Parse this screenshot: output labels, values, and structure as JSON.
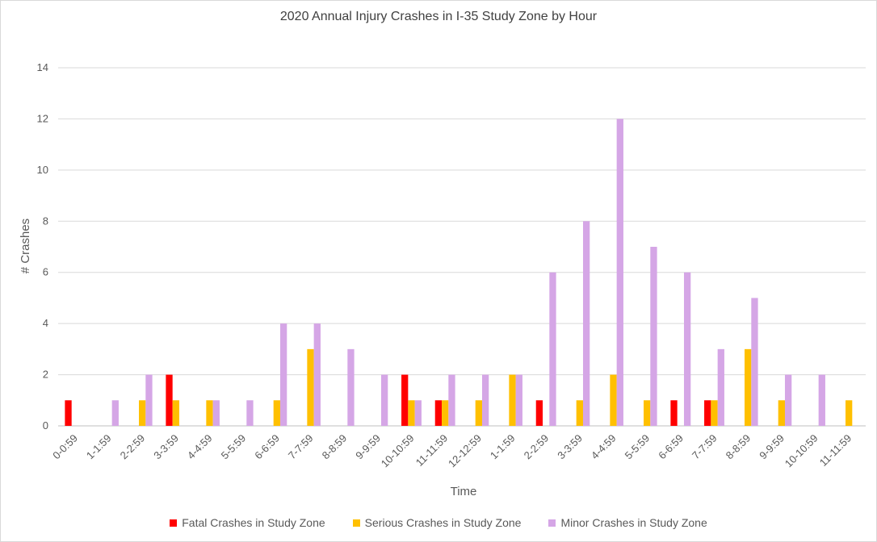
{
  "chart_data": {
    "type": "bar",
    "title": "2020 Annual Injury Crashes in I-35 Study Zone by Hour",
    "xlabel": "Time",
    "ylabel": "# Crashes",
    "ylim": [
      0,
      14
    ],
    "yticks": [
      0,
      2,
      4,
      6,
      8,
      10,
      12,
      14
    ],
    "grid": true,
    "legend_position": "bottom",
    "categories": [
      "0-0:59",
      "1-1:59",
      "2-2:59",
      "3-3:59",
      "4-4:59",
      "5-5:59",
      "6-6:59",
      "7-7:59",
      "8-8:59",
      "9-9:59",
      "10-10:59",
      "11-11:59",
      "12-12:59",
      "1-1:59",
      "2-2:59",
      "3-3:59",
      "4-4:59",
      "5-5:59",
      "6-6:59",
      "7-7:59",
      "8-8:59",
      "9-9:59",
      "10-10:59",
      "11-11:59"
    ],
    "series": [
      {
        "name": "Fatal Crashes in Study Zone",
        "color": "#ff0000",
        "values": [
          1,
          0,
          0,
          2,
          0,
          0,
          0,
          0,
          0,
          0,
          2,
          1,
          0,
          0,
          1,
          0,
          0,
          0,
          1,
          1,
          0,
          0,
          0,
          0
        ]
      },
      {
        "name": "Serious Crashes in Study Zone",
        "color": "#ffc000",
        "values": [
          0,
          0,
          1,
          1,
          1,
          0,
          1,
          3,
          0,
          0,
          1,
          1,
          1,
          2,
          0,
          1,
          2,
          1,
          0,
          1,
          3,
          1,
          0,
          1
        ]
      },
      {
        "name": "Minor Crashes in Study Zone",
        "color": "#d5a6e6",
        "values": [
          0,
          1,
          2,
          0,
          1,
          1,
          4,
          4,
          3,
          2,
          1,
          2,
          2,
          2,
          6,
          8,
          12,
          7,
          6,
          3,
          5,
          2,
          2,
          0
        ]
      }
    ]
  }
}
